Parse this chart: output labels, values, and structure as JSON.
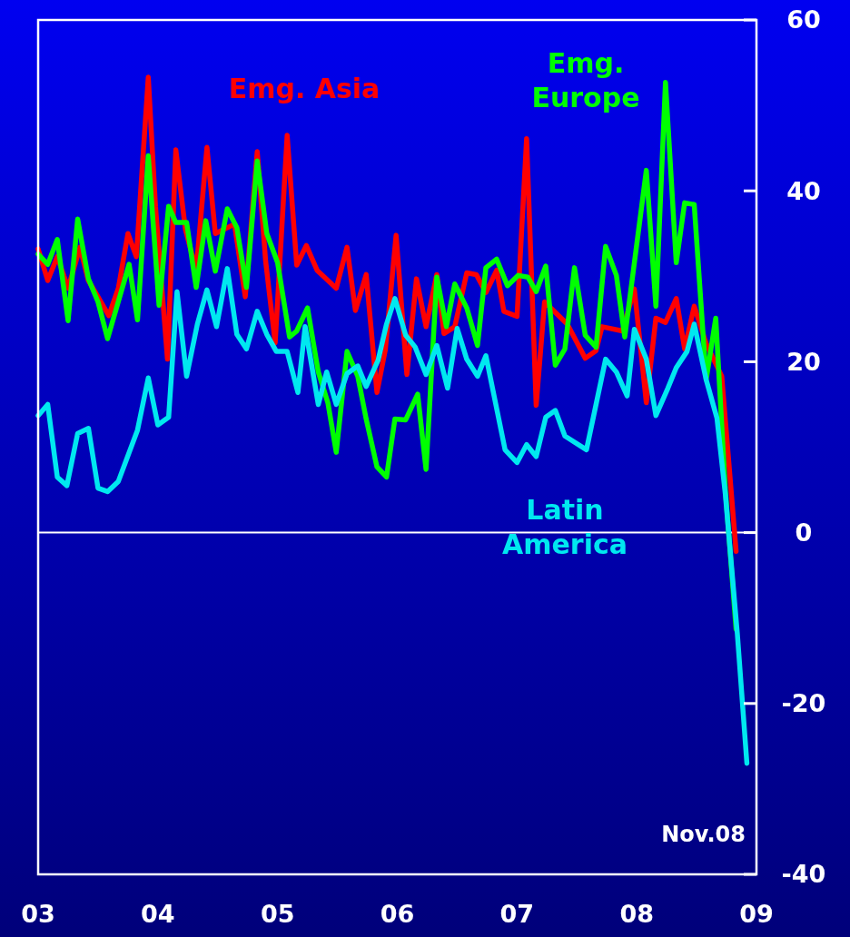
{
  "chart_data": {
    "type": "line",
    "xlim": [
      2003,
      2009
    ],
    "xticks": [
      {
        "value": 2003,
        "label": "03"
      },
      {
        "value": 2004,
        "label": "04"
      },
      {
        "value": 2005,
        "label": "05"
      },
      {
        "value": 2006,
        "label": "06"
      },
      {
        "value": 2007,
        "label": "07"
      },
      {
        "value": 2008,
        "label": "08"
      },
      {
        "value": 2009,
        "label": "09"
      }
    ],
    "ylim": [
      -40,
      60
    ],
    "yticks": [
      -40,
      -20,
      0,
      20,
      40,
      60
    ],
    "grid": false,
    "legend": false,
    "marker": "none",
    "line_style": "solid",
    "ref_lines": [
      {
        "axis": "y",
        "value": 0,
        "color": "#ffffff"
      }
    ],
    "annotations": [
      "Nov.08"
    ],
    "series": [
      {
        "name": "Emg. Asia",
        "color": "#ff0000",
        "x": [
          2003.0,
          2003.08,
          2003.16,
          2003.25,
          2003.35,
          2003.42,
          2003.5,
          2003.59,
          2003.67,
          2003.75,
          2003.82,
          2003.92,
          2003.98,
          2004.08,
          2004.15,
          2004.23,
          2004.32,
          2004.41,
          2004.48,
          2004.64,
          2004.73,
          2004.83,
          2004.9,
          2004.98,
          2005.08,
          2005.16,
          2005.24,
          2005.33,
          2005.49,
          2005.58,
          2005.65,
          2005.74,
          2005.83,
          2005.9,
          2005.99,
          2006.08,
          2006.16,
          2006.24,
          2006.33,
          2006.39,
          2006.48,
          2006.58,
          2006.66,
          2006.74,
          2006.83,
          2006.89,
          2007.0,
          2007.08,
          2007.16,
          2007.23,
          2007.42,
          2007.57,
          2007.66,
          2007.71,
          2007.88,
          2007.98,
          2008.08,
          2008.16,
          2008.24,
          2008.33,
          2008.4,
          2008.48,
          2008.58,
          2008.71,
          2008.83
        ],
        "values": [
          33.2,
          29.5,
          32.3,
          28.6,
          33.4,
          29.5,
          27.6,
          25.4,
          28.6,
          35.0,
          32.3,
          53.3,
          38.2,
          20.3,
          44.8,
          35.5,
          30.7,
          45.1,
          35.0,
          36.1,
          27.6,
          44.6,
          31.8,
          22.2,
          46.5,
          31.3,
          33.6,
          30.7,
          28.6,
          33.4,
          26.0,
          30.2,
          16.4,
          21.4,
          34.8,
          18.5,
          29.7,
          24.1,
          30.2,
          23.3,
          24.1,
          30.4,
          30.2,
          28.1,
          30.7,
          25.9,
          25.3,
          46.1,
          14.9,
          27.0,
          24.4,
          20.4,
          21.3,
          24.1,
          23.6,
          28.5,
          15.2,
          25.1,
          24.6,
          27.4,
          21.5,
          26.5,
          22.1,
          18.3,
          -2.2
        ]
      },
      {
        "name": "Emg. Europe",
        "color": "#00ff00",
        "x": [
          2003.0,
          2003.08,
          2003.16,
          2003.25,
          2003.33,
          2003.42,
          2003.5,
          2003.58,
          2003.76,
          2003.83,
          2003.92,
          2004.01,
          2004.09,
          2004.15,
          2004.24,
          2004.32,
          2004.4,
          2004.48,
          2004.58,
          2004.66,
          2004.74,
          2004.83,
          2004.91,
          2005.0,
          2005.1,
          2005.16,
          2005.25,
          2005.34,
          2005.42,
          2005.49,
          2005.58,
          2005.67,
          2005.74,
          2005.83,
          2005.91,
          2005.98,
          2006.07,
          2006.17,
          2006.24,
          2006.33,
          2006.41,
          2006.48,
          2006.58,
          2006.67,
          2006.74,
          2006.83,
          2006.92,
          2007.01,
          2007.09,
          2007.16,
          2007.24,
          2007.32,
          2007.4,
          2007.48,
          2007.57,
          2007.66,
          2007.74,
          2007.83,
          2007.9,
          2008.08,
          2008.16,
          2008.24,
          2008.33,
          2008.4,
          2008.48,
          2008.58,
          2008.66,
          2008.74,
          2008.83
        ],
        "values": [
          32.6,
          31.4,
          34.3,
          24.8,
          36.7,
          29.7,
          27.0,
          22.7,
          31.4,
          24.9,
          44.1,
          26.6,
          38.2,
          36.3,
          36.3,
          28.7,
          36.5,
          30.6,
          37.9,
          35.7,
          28.7,
          43.5,
          35.0,
          31.6,
          22.9,
          23.6,
          26.3,
          18.8,
          15.2,
          9.4,
          21.2,
          18.3,
          13.3,
          7.7,
          6.5,
          13.3,
          13.2,
          16.2,
          7.4,
          29.9,
          24.1,
          29.1,
          26.3,
          21.9,
          31.0,
          32.0,
          28.9,
          30.1,
          29.9,
          28.2,
          31.2,
          19.6,
          21.5,
          31.0,
          23.1,
          21.7,
          33.5,
          30.1,
          22.9,
          42.4,
          26.5,
          52.7,
          31.6,
          38.6,
          38.4,
          17.9,
          25.1,
          5.0,
          -11.3
        ]
      },
      {
        "name": "Latin America",
        "color": "#00e8f0",
        "x": [
          2003.0,
          2003.08,
          2003.16,
          2003.24,
          2003.33,
          2003.42,
          2003.5,
          2003.58,
          2003.67,
          2003.83,
          2003.92,
          2004.0,
          2004.09,
          2004.16,
          2004.24,
          2004.33,
          2004.41,
          2004.49,
          2004.58,
          2004.66,
          2004.74,
          2004.83,
          2004.91,
          2004.99,
          2005.08,
          2005.17,
          2005.23,
          2005.34,
          2005.41,
          2005.49,
          2005.58,
          2005.67,
          2005.74,
          2005.84,
          2005.91,
          2005.98,
          2006.07,
          2006.15,
          2006.24,
          2006.33,
          2006.42,
          2006.5,
          2006.58,
          2006.67,
          2006.74,
          2006.9,
          2007.0,
          2007.08,
          2007.16,
          2007.24,
          2007.32,
          2007.4,
          2007.58,
          2007.74,
          2007.83,
          2007.92,
          2007.98,
          2008.08,
          2008.16,
          2008.26,
          2008.33,
          2008.42,
          2008.48,
          2008.58,
          2008.67,
          2008.74,
          2008.84,
          2008.92
        ],
        "values": [
          13.7,
          15.0,
          6.5,
          5.5,
          11.6,
          12.2,
          5.2,
          4.8,
          6.0,
          12.0,
          18.1,
          12.6,
          13.5,
          28.2,
          18.3,
          24.4,
          28.4,
          24.1,
          30.9,
          23.2,
          21.5,
          25.9,
          23.2,
          21.2,
          21.2,
          16.4,
          24.1,
          15.0,
          18.8,
          15.0,
          18.6,
          19.5,
          17.1,
          20.2,
          24.4,
          27.4,
          23.1,
          21.7,
          18.5,
          21.9,
          16.9,
          23.9,
          20.3,
          18.3,
          20.7,
          9.7,
          8.2,
          10.3,
          8.9,
          13.5,
          14.3,
          11.3,
          9.7,
          20.3,
          18.8,
          16.0,
          23.8,
          20.3,
          13.7,
          16.9,
          19.3,
          21.2,
          24.4,
          17.9,
          13.4,
          4.5,
          -11.8,
          -27.0
        ]
      }
    ]
  }
}
